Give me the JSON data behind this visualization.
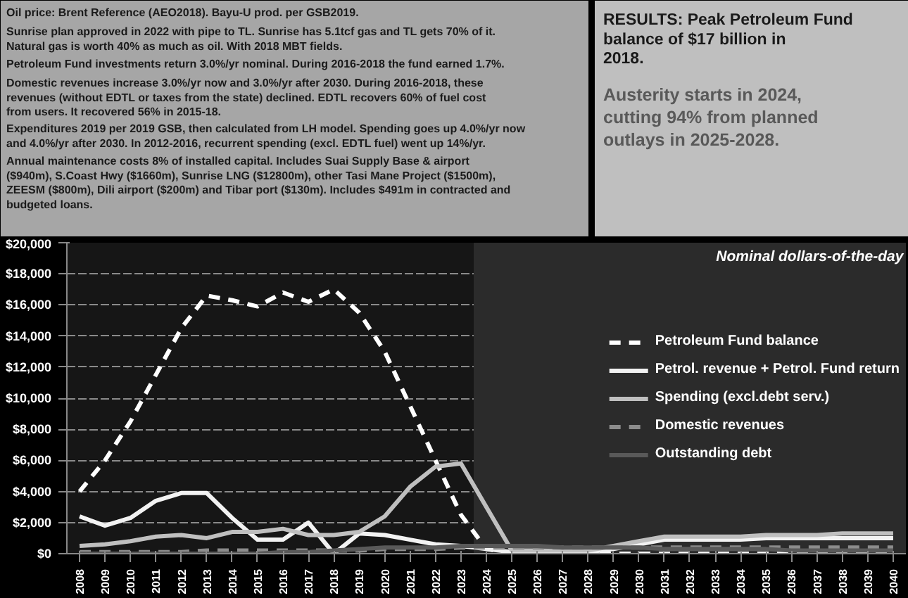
{
  "chart_data": {
    "type": "line",
    "categories": [
      "2008",
      "2009",
      "2010",
      "2011",
      "2012",
      "2013",
      "2014",
      "2015",
      "2016",
      "2017",
      "2018",
      "2019",
      "2020",
      "2021",
      "2022",
      "2023",
      "2024",
      "2025",
      "2026",
      "2027",
      "2028",
      "2029",
      "2030",
      "2031",
      "2032",
      "2033",
      "2034",
      "2035",
      "2036",
      "2037",
      "2038",
      "2039",
      "2040"
    ],
    "series": [
      {
        "name": "Petroleum Fund balance",
        "color": "#ffffff",
        "line_style": "dashed",
        "values": [
          4000,
          6000,
          8500,
          11500,
          14500,
          16600,
          16300,
          15900,
          16800,
          16200,
          17000,
          15500,
          13000,
          9500,
          6000,
          2500,
          300,
          0,
          0,
          0,
          0,
          0,
          0,
          0,
          0,
          0,
          0,
          0,
          0,
          0,
          0,
          0,
          0
        ]
      },
      {
        "name": "Petrol. revenue + Petrol. Fund return",
        "color": "#f2f2f2",
        "line_style": "solid",
        "values": [
          2400,
          1800,
          2300,
          3400,
          3900,
          3900,
          2300,
          900,
          900,
          2000,
          0,
          1300,
          1200,
          900,
          600,
          500,
          300,
          100,
          100,
          100,
          100,
          300,
          600,
          900,
          900,
          900,
          900,
          1000,
          1000,
          1000,
          1000,
          1000,
          1000
        ]
      },
      {
        "name": "Spending (excl.debt serv.)",
        "color": "#bfbfbf",
        "line_style": "solid",
        "values": [
          500,
          600,
          800,
          1100,
          1200,
          1000,
          1400,
          1400,
          1600,
          1200,
          1200,
          1400,
          2400,
          4300,
          5600,
          5800,
          3000,
          200,
          200,
          200,
          200,
          500,
          800,
          1100,
          1100,
          1100,
          1100,
          1200,
          1200,
          1200,
          1300,
          1300,
          1300
        ]
      },
      {
        "name": "Domestic revenues",
        "color": "#8c8c8c",
        "line_style": "dashed",
        "values": [
          100,
          100,
          100,
          100,
          100,
          200,
          200,
          200,
          200,
          200,
          200,
          200,
          300,
          300,
          300,
          400,
          400,
          400,
          400,
          400,
          400,
          400,
          400,
          400,
          400,
          400,
          400,
          400,
          400,
          400,
          400,
          400,
          400
        ]
      },
      {
        "name": "Outstanding debt",
        "color": "#595959",
        "line_style": "solid",
        "values": [
          0,
          0,
          0,
          0,
          0,
          0,
          0,
          0,
          100,
          100,
          200,
          300,
          400,
          400,
          400,
          500,
          500,
          500,
          500,
          400,
          400,
          400,
          400,
          300,
          300,
          300,
          300,
          300,
          200,
          200,
          200,
          200,
          200
        ]
      }
    ],
    "ylim": [
      0,
      20000
    ],
    "yticks": [
      {
        "value": 0,
        "label": "$0"
      },
      {
        "value": 2000,
        "label": "$2,000"
      },
      {
        "value": 4000,
        "label": "$4,000"
      },
      {
        "value": 6000,
        "label": "$6,000"
      },
      {
        "value": 8000,
        "label": "$8,000"
      },
      {
        "value": 10000,
        "label": "$10,000"
      },
      {
        "value": 12000,
        "label": "$12,000"
      },
      {
        "value": 14000,
        "label": "$14,000"
      },
      {
        "value": 16000,
        "label": "$16,000"
      },
      {
        "value": 18000,
        "label": "$18,000"
      },
      {
        "value": 20000,
        "label": "$20,000"
      }
    ],
    "grid": "y",
    "legend": "right",
    "bands": [
      {
        "axis": "x",
        "from": "2024",
        "to": "2040",
        "color": "#2b2b2b"
      }
    ],
    "annotations": [
      "Oil price: Brent Reference (AEO2018).   Bayu-U prod. per GSB2019.",
      "Sunrise plan approved in 2022 with pipe to TL. Sunrise has 5.1tcf gas and TL gets 70% of it. Natural gas is worth 40% as much as oil. With 2018 MBT fields.",
      "Petroleum Fund investments return 3.0%/yr nominal.   During 2016-2018 the fund earned 1.7%.",
      "Domestic revenues increase 3.0%/yr now and 3.0%/yr after 2030. During 2016-2018, these revenues (without EDTL or taxes from the state) declined. EDTL recovers 60% of fuel cost from users. It recovered 56% in 2015-18.",
      "Expenditures 2019 per 2019 GSB, then calculated from LH model. Spending goes up 4.0%/yr now and 4.0%/yr after 2030. In 2012-2016, recurrent spending (excl. EDTL fuel) went up 14%/yr.",
      "Annual maintenance costs 8% of installed capital. Includes Suai Supply Base & airport ($940m), S.Coast Hwy ($1660m), Sunrise LNG ($12800m), other Tasi Mane Project ($1500m), ZEESM ($800m), Dili airport ($200m) and Tibar port ($130m). Includes $491m in contracted and budgeted loans.",
      "RESULTS: Peak Petroleum Fund balance of $17 billion in 2018.",
      "Austerity starts in 2024, cutting 94% from planned outlays in 2025-2028.",
      "Nominal dollars-of-the-day"
    ]
  }
}
